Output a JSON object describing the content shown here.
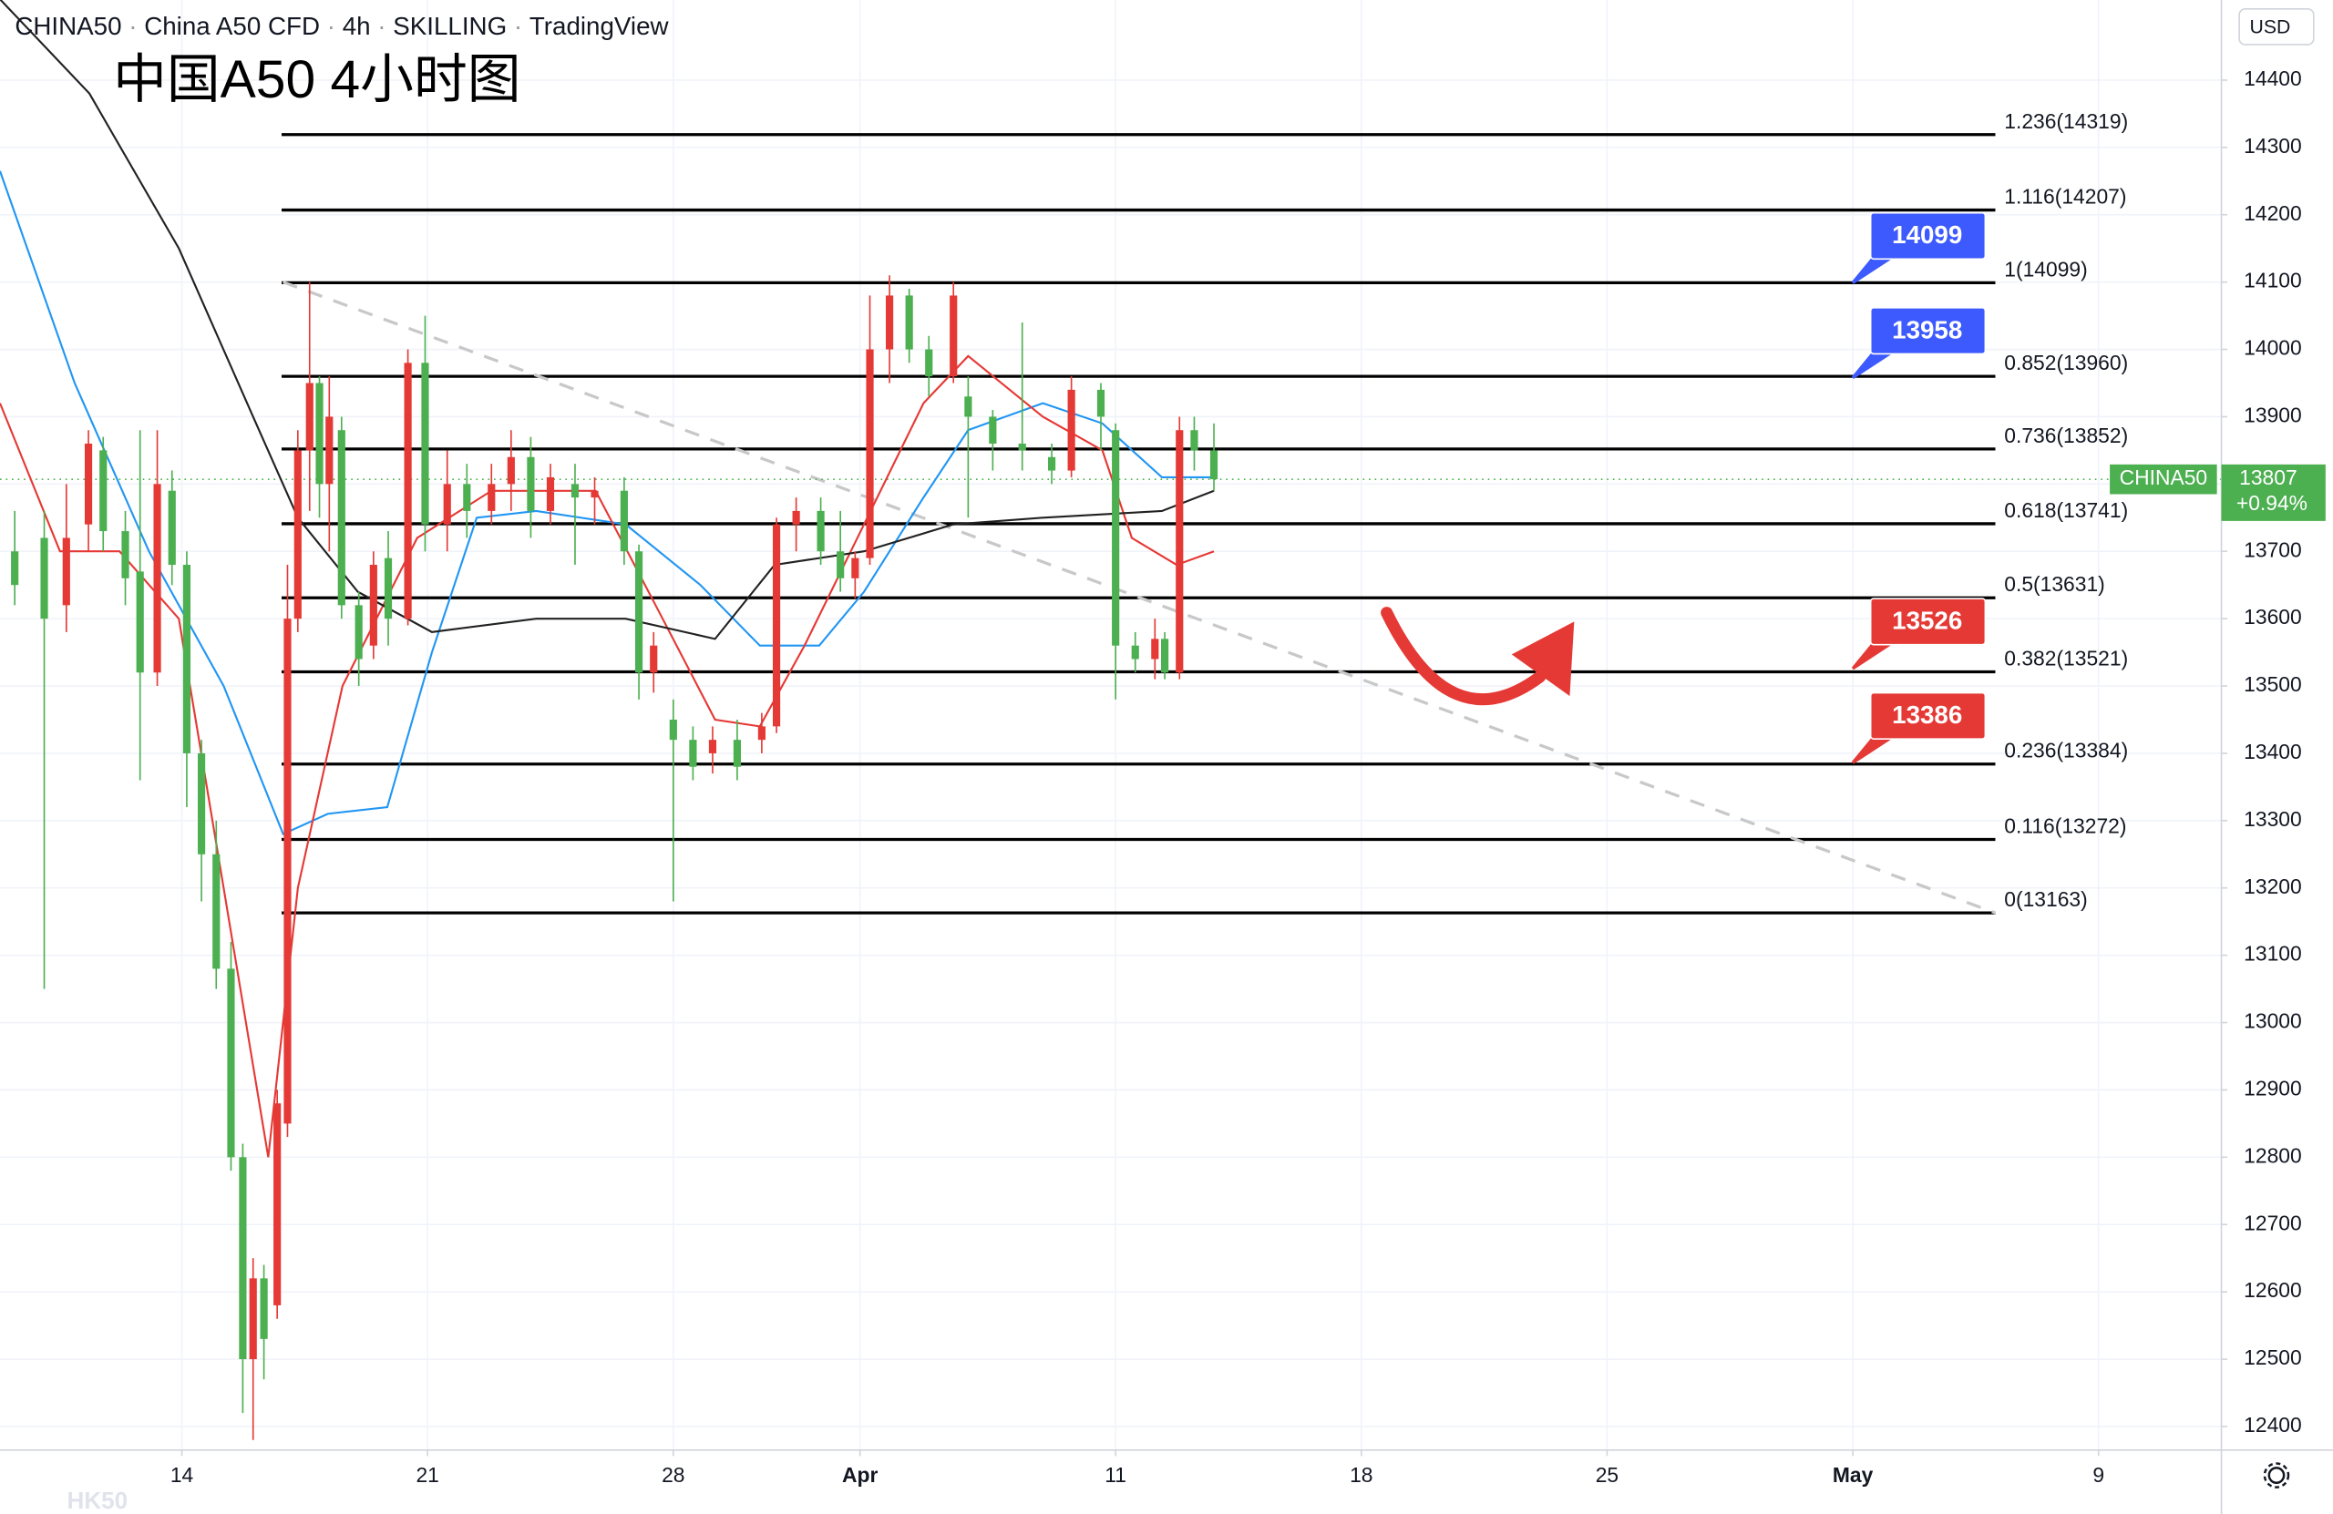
{
  "chart_data": {
    "type": "candlestick",
    "symbol": "CHINA50",
    "description": "China A50 CFD",
    "interval": "4h",
    "broker": "SKILLING",
    "platform": "TradingView",
    "title": "中国A50 4小时图",
    "currency": "USD",
    "watermark": "HK50",
    "x": [
      -3.4,
      -2.8,
      -2.35,
      -1.9,
      -1.6,
      -1.15,
      -0.85,
      -0.5,
      -0.2,
      0.1,
      0.4,
      0.7,
      1.0,
      1.24,
      1.45,
      1.67,
      1.94,
      2.15,
      2.36,
      2.6,
      2.8,
      3.0,
      3.25,
      3.6,
      3.9,
      4.2,
      4.6,
      4.95,
      5.4,
      5.8,
      6.3,
      6.7,
      7.1,
      7.5,
      8.0,
      8.4,
      9.0,
      9.3,
      9.6,
      10.0,
      10.4,
      10.8,
      11.3,
      11.8,
      12.1,
      12.5,
      13.0,
      13.4,
      13.7,
      14.0,
      14.4,
      14.8,
      15.2,
      15.7,
      16.0,
      16.5,
      17.1,
      17.7,
      18.1,
      18.7,
      19.0,
      19.4,
      19.8,
      20.0,
      20.3,
      20.6,
      21.0
    ],
    "open": [
      13700,
      13720,
      13620,
      13740,
      13850,
      13730,
      13670,
      13520,
      13790,
      13680,
      13400,
      13250,
      13080,
      12800,
      12500,
      12620,
      12580,
      12850,
      13600,
      13850,
      13950,
      13800,
      13880,
      13620,
      13560,
      13690,
      13600,
      13980,
      13740,
      13800,
      13760,
      13800,
      13840,
      13760,
      13800,
      13780,
      13790,
      13700,
      13520,
      13450,
      13420,
      13400,
      13420,
      13420,
      13440,
      13740,
      13760,
      13700,
      13660,
      13690,
      14000,
      14080,
      14000,
      13960,
      13930,
      13900,
      13860,
      13840,
      13820,
      13940,
      13880,
      13560,
      13540,
      13570,
      13520,
      13880,
      13850
    ],
    "high": [
      13760,
      13760,
      13800,
      13880,
      13870,
      13760,
      13880,
      13880,
      13820,
      13700,
      13420,
      13300,
      13120,
      12820,
      12650,
      12640,
      12900,
      13680,
      13880,
      14100,
      13960,
      13960,
      13900,
      13640,
      13700,
      13730,
      14000,
      14050,
      13850,
      13830,
      13830,
      13880,
      13870,
      13830,
      13830,
      13810,
      13810,
      13710,
      13580,
      13480,
      13440,
      13440,
      13450,
      13460,
      13750,
      13780,
      13780,
      13760,
      13700,
      14080,
      14110,
      14090,
      14020,
      14100,
      13960,
      13910,
      14040,
      13860,
      13960,
      13950,
      13890,
      13580,
      13600,
      13580,
      13900,
      13900,
      13890
    ],
    "low": [
      13620,
      13050,
      13580,
      13700,
      13700,
      13620,
      13360,
      13500,
      13650,
      13320,
      13180,
      13050,
      12780,
      12420,
      12380,
      12470,
      12560,
      12830,
      13580,
      13760,
      13750,
      13700,
      13600,
      13500,
      13540,
      13560,
      13590,
      13700,
      13700,
      13720,
      13740,
      13760,
      13720,
      13740,
      13680,
      13740,
      13680,
      13480,
      13490,
      13180,
      13360,
      13370,
      13360,
      13400,
      13430,
      13700,
      13680,
      13640,
      13630,
      13680,
      13950,
      13980,
      13930,
      13950,
      13750,
      13820,
      13820,
      13800,
      13810,
      13850,
      13480,
      13520,
      13510,
      13510,
      13510,
      13820,
      13790
    ],
    "close": [
      13650,
      13600,
      13720,
      13860,
      13730,
      13660,
      13520,
      13800,
      13680,
      13400,
      13250,
      13080,
      12800,
      12500,
      12620,
      12530,
      12880,
      13600,
      13850,
      13950,
      13800,
      13900,
      13620,
      13540,
      13680,
      13600,
      13980,
      13740,
      13800,
      13760,
      13800,
      13840,
      13760,
      13810,
      13780,
      13790,
      13700,
      13520,
      13560,
      13420,
      13380,
      13420,
      13380,
      13440,
      13740,
      13760,
      13700,
      13660,
      13690,
      14000,
      14080,
      14000,
      13960,
      14080,
      13900,
      13860,
      13850,
      13820,
      13940,
      13900,
      13560,
      13540,
      13570,
      13520,
      13880,
      13850,
      13807
    ],
    "up_color": "#e53935",
    "down_color": "#4caf50",
    "moving_averages": [
      {
        "color": "#2196f3",
        "x": [
          -3.7,
          -2.18,
          -0.67,
          0.85,
          2.06,
          2.97,
          4.18,
          5.09,
          6.0,
          7.21,
          9.03,
          10.55,
          11.76,
          12.97,
          13.88,
          15.09,
          16.0,
          17.52,
          18.73,
          19.94,
          21.0
        ],
        "values": [
          14265,
          13950,
          13700,
          13500,
          13280,
          13310,
          13320,
          13550,
          13750,
          13760,
          13740,
          13650,
          13560,
          13560,
          13640,
          13780,
          13880,
          13920,
          13890,
          13810,
          13810
        ]
      },
      {
        "color": "#e53935",
        "x": [
          -3.7,
          -2.48,
          -1.27,
          -0.06,
          0.85,
          1.76,
          2.36,
          3.27,
          4.79,
          6.3,
          8.42,
          9.64,
          10.85,
          11.76,
          12.67,
          13.88,
          15.09,
          16.0,
          17.52,
          18.73,
          19.33,
          20.24,
          21.0
        ],
        "values": [
          13920,
          13700,
          13700,
          13600,
          13200,
          12800,
          13200,
          13500,
          13720,
          13790,
          13790,
          13620,
          13450,
          13440,
          13560,
          13740,
          13920,
          13990,
          13900,
          13850,
          13720,
          13680,
          13700
        ]
      },
      {
        "color": "#222222",
        "x": [
          -3.7,
          -1.88,
          -0.06,
          1.45,
          2.36,
          3.58,
          5.09,
          7.21,
          9.03,
          10.85,
          12.06,
          13.88,
          15.7,
          17.52,
          19.94,
          21.0
        ],
        "values": [
          14520,
          14380,
          14150,
          13900,
          13750,
          13640,
          13580,
          13600,
          13600,
          13570,
          13680,
          13700,
          13740,
          13750,
          13760,
          13790
        ]
      }
    ],
    "fib_x": [
      2.03,
      36.9
    ],
    "fib_levels": [
      {
        "value": 14319,
        "label": "1.236(14319)"
      },
      {
        "value": 14207,
        "label": "1.116(14207)"
      },
      {
        "value": 14099,
        "label": "1(14099)"
      },
      {
        "value": 13960,
        "label": "0.852(13960)"
      },
      {
        "value": 13852,
        "label": "0.736(13852)"
      },
      {
        "value": 13741,
        "label": "0.618(13741)"
      },
      {
        "value": 13631,
        "label": "0.5(13631)"
      },
      {
        "value": 13521,
        "label": "0.382(13521)"
      },
      {
        "value": 13384,
        "label": "0.236(13384)"
      },
      {
        "value": 13272,
        "label": "0.116(13272)"
      },
      {
        "value": 13163,
        "label": "0(13163)"
      }
    ],
    "trendline": {
      "x": [
        2.06,
        36.9
      ],
      "values": [
        14100,
        13163
      ]
    },
    "price_tags": [
      {
        "x": 34,
        "value": 14099,
        "color": "#3d5afe"
      },
      {
        "x": 34,
        "value": 13958,
        "color": "#3d5afe"
      },
      {
        "x": 34,
        "value": 13526,
        "color": "#e53935"
      },
      {
        "x": 34,
        "value": 13386,
        "color": "#e53935"
      }
    ],
    "last_price": {
      "value": 13807,
      "change": "+0.94%",
      "color": "#4caf50"
    },
    "xlim": [
      -3.7,
      41.5
    ],
    "xticks": [
      {
        "value": 0,
        "label": "14"
      },
      {
        "value": 5,
        "label": "21"
      },
      {
        "value": 10,
        "label": "28"
      },
      {
        "value": 13.8,
        "label": "Apr"
      },
      {
        "value": 19,
        "label": "11"
      },
      {
        "value": 24,
        "label": "18"
      },
      {
        "value": 29,
        "label": "25"
      },
      {
        "value": 34,
        "label": "May"
      },
      {
        "value": 39,
        "label": "9"
      }
    ],
    "ylim": [
      12365,
      14519
    ],
    "yticks": [
      12400,
      12500,
      12600,
      12700,
      12800,
      12900,
      13000,
      13100,
      13200,
      13300,
      13400,
      13500,
      13600,
      13700,
      13800,
      13900,
      14000,
      14100,
      14200,
      14300,
      14400
    ],
    "grid": true
  }
}
